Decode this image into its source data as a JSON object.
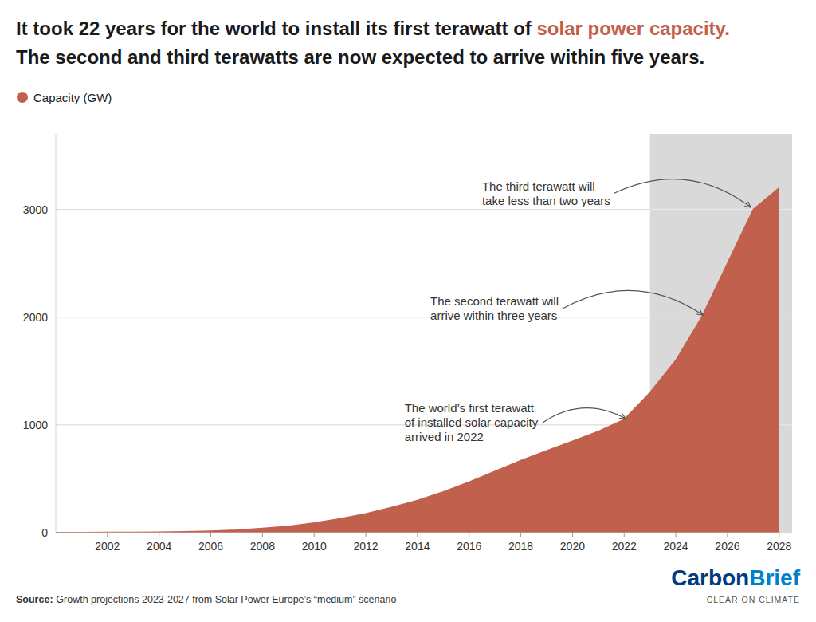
{
  "chart_data": {
    "type": "area",
    "title": "It took 22 years for the world to install its first terawatt of",
    "title_highlight": "solar power capacity.",
    "subtitle": "The second and third terawatts are now expected to arrive within five years.",
    "x": [
      2000,
      2001,
      2002,
      2003,
      2004,
      2005,
      2006,
      2007,
      2008,
      2009,
      2010,
      2011,
      2012,
      2013,
      2014,
      2015,
      2016,
      2017,
      2018,
      2019,
      2020,
      2021,
      2022,
      2023,
      2024,
      2025,
      2026,
      2027,
      2028
    ],
    "series": [
      {
        "name": "Capacity (GW)",
        "color": "#c1604c",
        "values": [
          1,
          2,
          3,
          4,
          6,
          9,
          15,
          24,
          40,
          60,
          90,
          130,
          175,
          235,
          300,
          380,
          470,
          570,
          670,
          760,
          850,
          940,
          1050,
          1300,
          1600,
          2000,
          2500,
          3000,
          3200
        ]
      }
    ],
    "shaded_region": {
      "x_start": 2023,
      "color": "#d9d9d9"
    },
    "xlim": [
      2000,
      2028.5
    ],
    "ylim": [
      0,
      3700
    ],
    "xticks": [
      2002,
      2004,
      2006,
      2008,
      2010,
      2012,
      2014,
      2016,
      2018,
      2020,
      2022,
      2024,
      2026,
      2028
    ],
    "yticks": [
      0,
      1000,
      2000,
      3000
    ],
    "grid": true,
    "legend": "top-left",
    "annotations": [
      {
        "text": "The world’s first terawatt\nof installed solar capacity\narrived in 2022",
        "x": 2013.5,
        "y": 1020,
        "arrow_x": 2022.05,
        "arrow_y": 1060
      },
      {
        "text": "The second terawatt will\narrive within three years",
        "x": 2014.5,
        "y": 2080,
        "arrow_x": 2025.05,
        "arrow_y": 2020
      },
      {
        "text": "The third terawatt will\ntake less than two years",
        "x": 2016.5,
        "y": 3150,
        "arrow_x": 2026.9,
        "arrow_y": 3020
      }
    ],
    "source_label": "Source:",
    "source": "Growth projections 2023-2027 from Solar Power Europe’s “medium” scenario",
    "logo": [
      "Carbon",
      "Brief"
    ],
    "logo_tagline": "CLEAR ON CLIMATE"
  }
}
